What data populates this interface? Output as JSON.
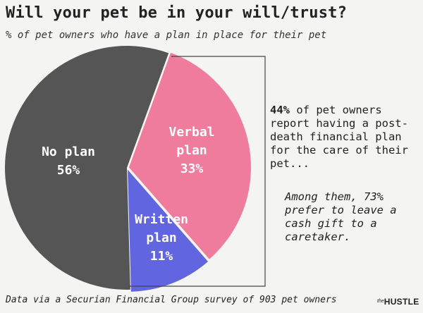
{
  "title": "Will your pet be in your will/trust?",
  "subtitle": "% of pet owners who have a plan in place for their pet",
  "chart_data": {
    "type": "pie",
    "categories": [
      "No plan",
      "Verbal plan",
      "Written plan"
    ],
    "values": [
      56,
      33,
      11
    ],
    "labels": [
      "56%",
      "33%",
      "11%"
    ],
    "colors": [
      "#555555",
      "#ef7c9c",
      "#6166e0"
    ],
    "title": "Will your pet be in your will/trust?",
    "subtitle": "% of pet owners who have a plan in place for their pet"
  },
  "slices": [
    {
      "name_lines": [
        "No plan"
      ],
      "pct": "56%"
    },
    {
      "name_lines": [
        "Verbal",
        "plan"
      ],
      "pct": "33%"
    },
    {
      "name_lines": [
        "Written",
        "plan"
      ],
      "pct": "11%"
    }
  ],
  "callout": {
    "highlight": "44%",
    "text": " of pet owners report having a post-death financial plan for the care of their pet..."
  },
  "note": "Among them, 73% prefer to leave a cash gift to a caretaker.",
  "footer": "Data via a Securian Financial Group survey of 903 pet owners",
  "logo": {
    "prefix": "the",
    "name": "HUSTLE"
  }
}
